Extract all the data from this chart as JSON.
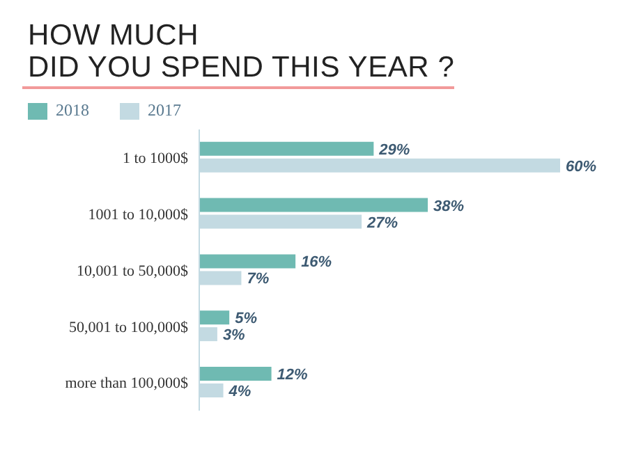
{
  "chart_data": {
    "type": "bar",
    "orientation": "horizontal",
    "title": "HOW MUCH\nDID YOU SPEND THIS YEAR ?",
    "categories": [
      "1 to 1000$",
      "1001 to 10,000$",
      "10,001 to 50,000$",
      "50,001 to 100,000$",
      "more than 100,000$"
    ],
    "series": [
      {
        "name": "2018",
        "color": "#6fbab2",
        "values": [
          29,
          38,
          16,
          5,
          12
        ],
        "value_labels": [
          "29%",
          "38%",
          "16%",
          "5%",
          "12%"
        ]
      },
      {
        "name": "2017",
        "color": "#c3dae2",
        "values": [
          60,
          27,
          7,
          3,
          4
        ],
        "value_labels": [
          "60%",
          "27%",
          "7%",
          "3%",
          "4%"
        ]
      }
    ],
    "legend": "top left",
    "grid": false
  }
}
